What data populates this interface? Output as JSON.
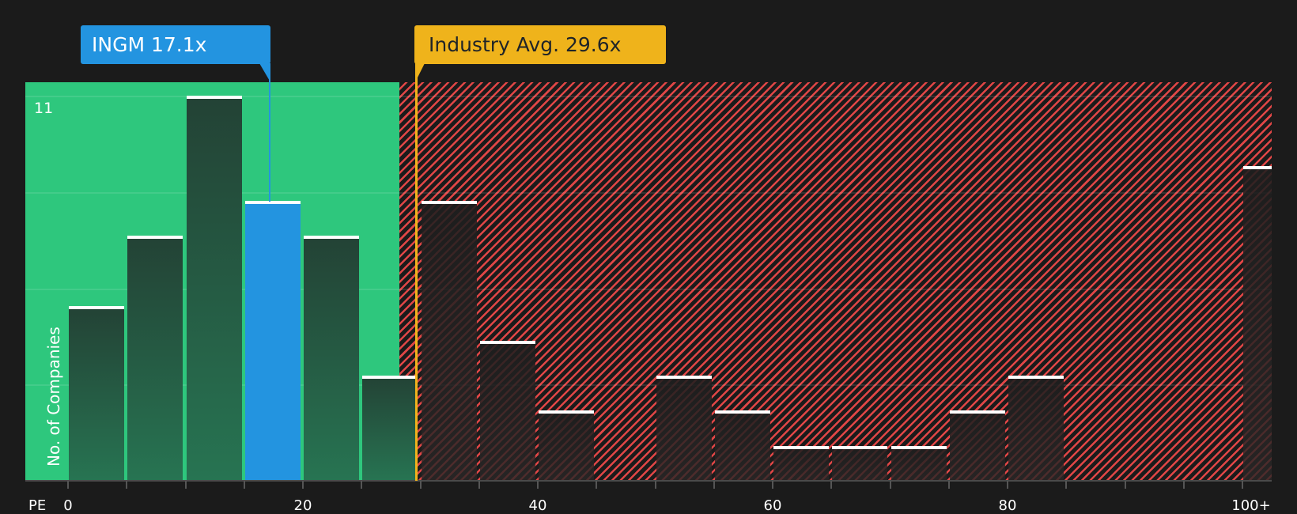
{
  "callouts": {
    "company": {
      "label": "INGM 17.1x",
      "color": "#2394e0",
      "value": 17.1
    },
    "industry": {
      "label": "Industry Avg. 29.6x",
      "color": "#efb31b",
      "value": 29.6
    }
  },
  "axis": {
    "x_prefix": "PE",
    "x_ticks": [
      "0",
      "20",
      "40",
      "60",
      "80",
      "100+"
    ],
    "y_max_label": "11",
    "y_label": "No. of Companies"
  },
  "colors": {
    "background": "#1b1b1b",
    "undervalued_zone": "#2ec77d",
    "overvalued_hatch": "#e04646",
    "highlight_bar": "#2394e0",
    "industry_line": "#efb31b"
  },
  "chart_data": {
    "type": "bar",
    "title": "",
    "xlabel": "PE",
    "ylabel": "No. of Companies",
    "categories": [
      "0-5",
      "5-10",
      "10-15",
      "15-20",
      "20-25",
      "25-30",
      "30-35",
      "35-40",
      "40-45",
      "45-50",
      "50-55",
      "55-60",
      "60-65",
      "65-70",
      "70-75",
      "75-80",
      "80-85",
      "85-90",
      "90-95",
      "95-100",
      "100+"
    ],
    "values": [
      5,
      7,
      11,
      8,
      7,
      3,
      8,
      4,
      2,
      0,
      3,
      2,
      1,
      1,
      1,
      2,
      3,
      0,
      0,
      0,
      9
    ],
    "highlight_category": "15-20",
    "ylim": [
      0,
      11
    ],
    "x_tick_labels": [
      "0",
      "20",
      "40",
      "60",
      "80",
      "100+"
    ],
    "grid": true,
    "annotations": [
      {
        "label": "INGM 17.1x",
        "x": 17.1
      },
      {
        "label": "Industry Avg. 29.6x",
        "x": 29.6
      }
    ],
    "zones": [
      {
        "name": "undervalued",
        "from": 0,
        "to": 28.3,
        "color": "#2ec77d"
      },
      {
        "name": "overvalued",
        "from": 28.3,
        "to": "100+",
        "color": "#e04646",
        "pattern": "hatch"
      }
    ]
  }
}
